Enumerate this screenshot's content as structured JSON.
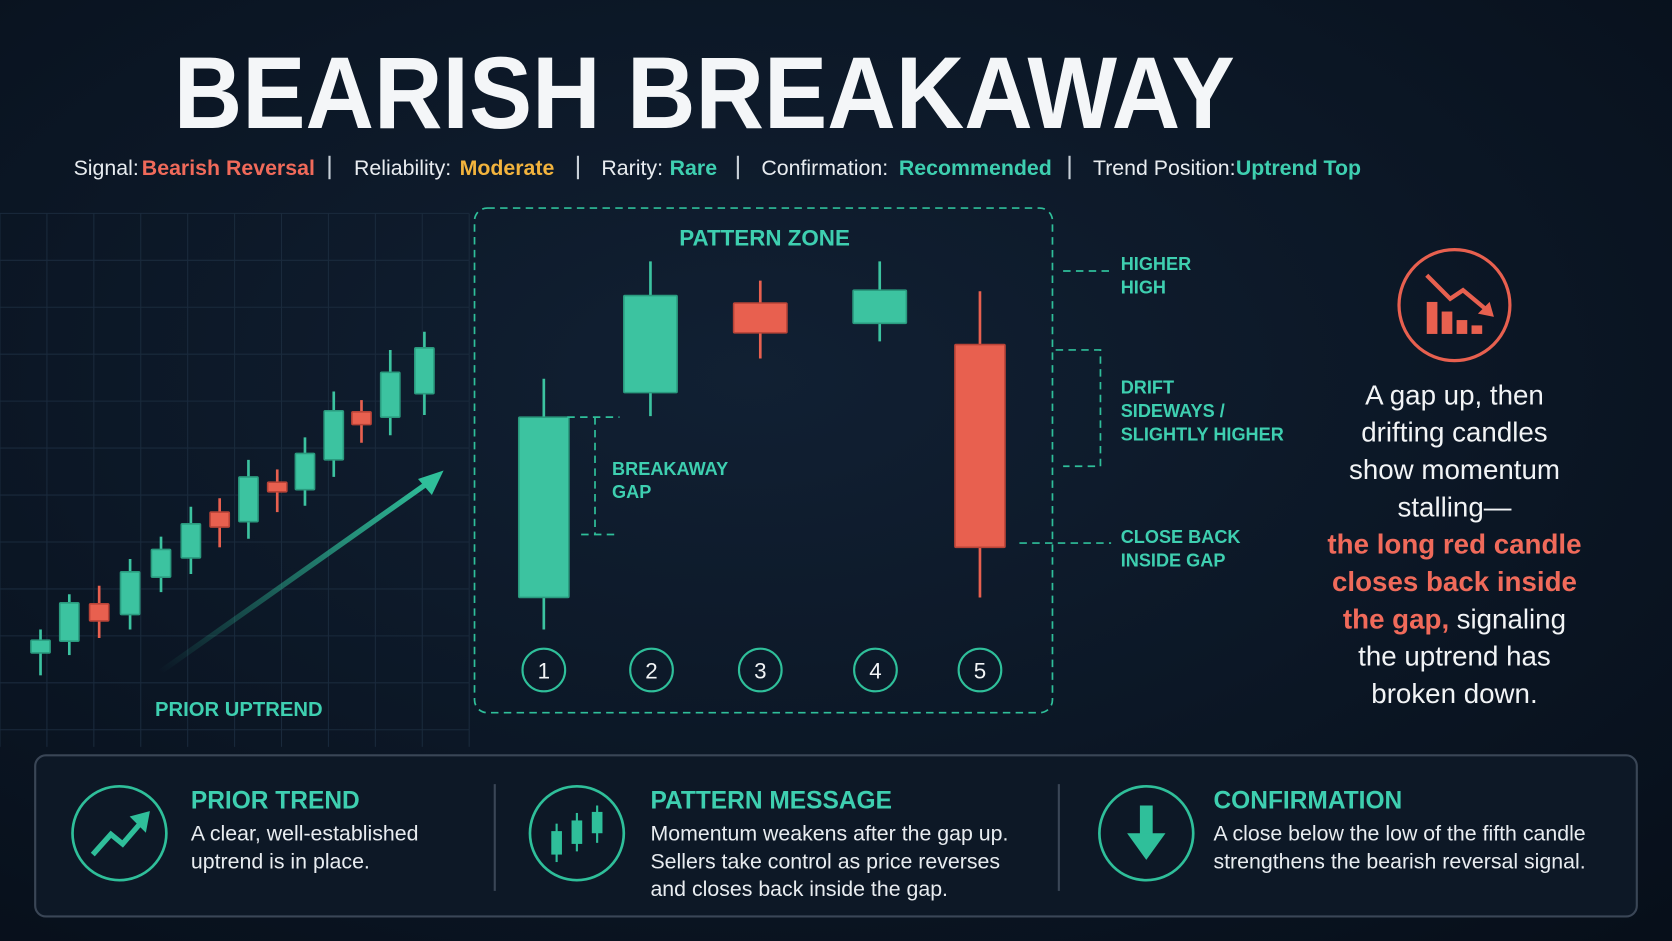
{
  "title": "BEARISH BREAKAWAY",
  "attributes": [
    {
      "label": "Signal:",
      "value": "Bearish Reversal"
    },
    {
      "label": "Reliability:",
      "value": "Moderate"
    },
    {
      "label": "Rarity:",
      "value": "Rare"
    },
    {
      "label": "Confirmation:",
      "value": "Recommended"
    },
    {
      "label": "Trend Position:",
      "value": "Uptrend Top"
    }
  ],
  "prior_uptrend": "PRIOR UPTREND",
  "pattern_zone": {
    "title": "PATTERN ZONE",
    "candle_numbers": [
      "1",
      "2",
      "3",
      "4",
      "5"
    ],
    "annotations": {
      "breakaway_gap": [
        "BREAKAWAY",
        "GAP"
      ],
      "higher_high": [
        "HIGHER",
        "HIGH"
      ],
      "drift": [
        "DRIFT",
        "SIDEWAYS /",
        "SLIGHTLY HIGHER"
      ],
      "close_back": [
        "CLOSE BACK",
        "INSIDE GAP"
      ]
    }
  },
  "summary": [
    [
      {
        "text": "A gap up, then"
      }
    ],
    [
      {
        "text": "drifting candles"
      }
    ],
    [
      {
        "text": "show momentum"
      }
    ],
    [
      {
        "text": "stalling—"
      }
    ],
    [
      {
        "text": "the long red candle",
        "highlight": true
      }
    ],
    [
      {
        "text": "closes back inside",
        "highlight": true
      }
    ],
    [
      {
        "text": "the gap,",
        "highlight": true
      },
      {
        "text": "signaling"
      }
    ],
    [
      {
        "text": "the uptrend has"
      }
    ],
    [
      {
        "text": "broken down."
      }
    ]
  ],
  "cards": [
    {
      "title": "PRIOR TREND",
      "lines": [
        "A clear, well-established",
        "uptrend is in place."
      ]
    },
    {
      "title": "PATTERN MESSAGE",
      "lines": [
        "Momentum weakens after the gap up.",
        "Sellers take control as price reverses",
        "and closes back inside the gap."
      ]
    },
    {
      "title": "CONFIRMATION",
      "lines": [
        "A close below the low of the fifth candle",
        "strengthens the bearish reversal signal."
      ]
    }
  ]
}
